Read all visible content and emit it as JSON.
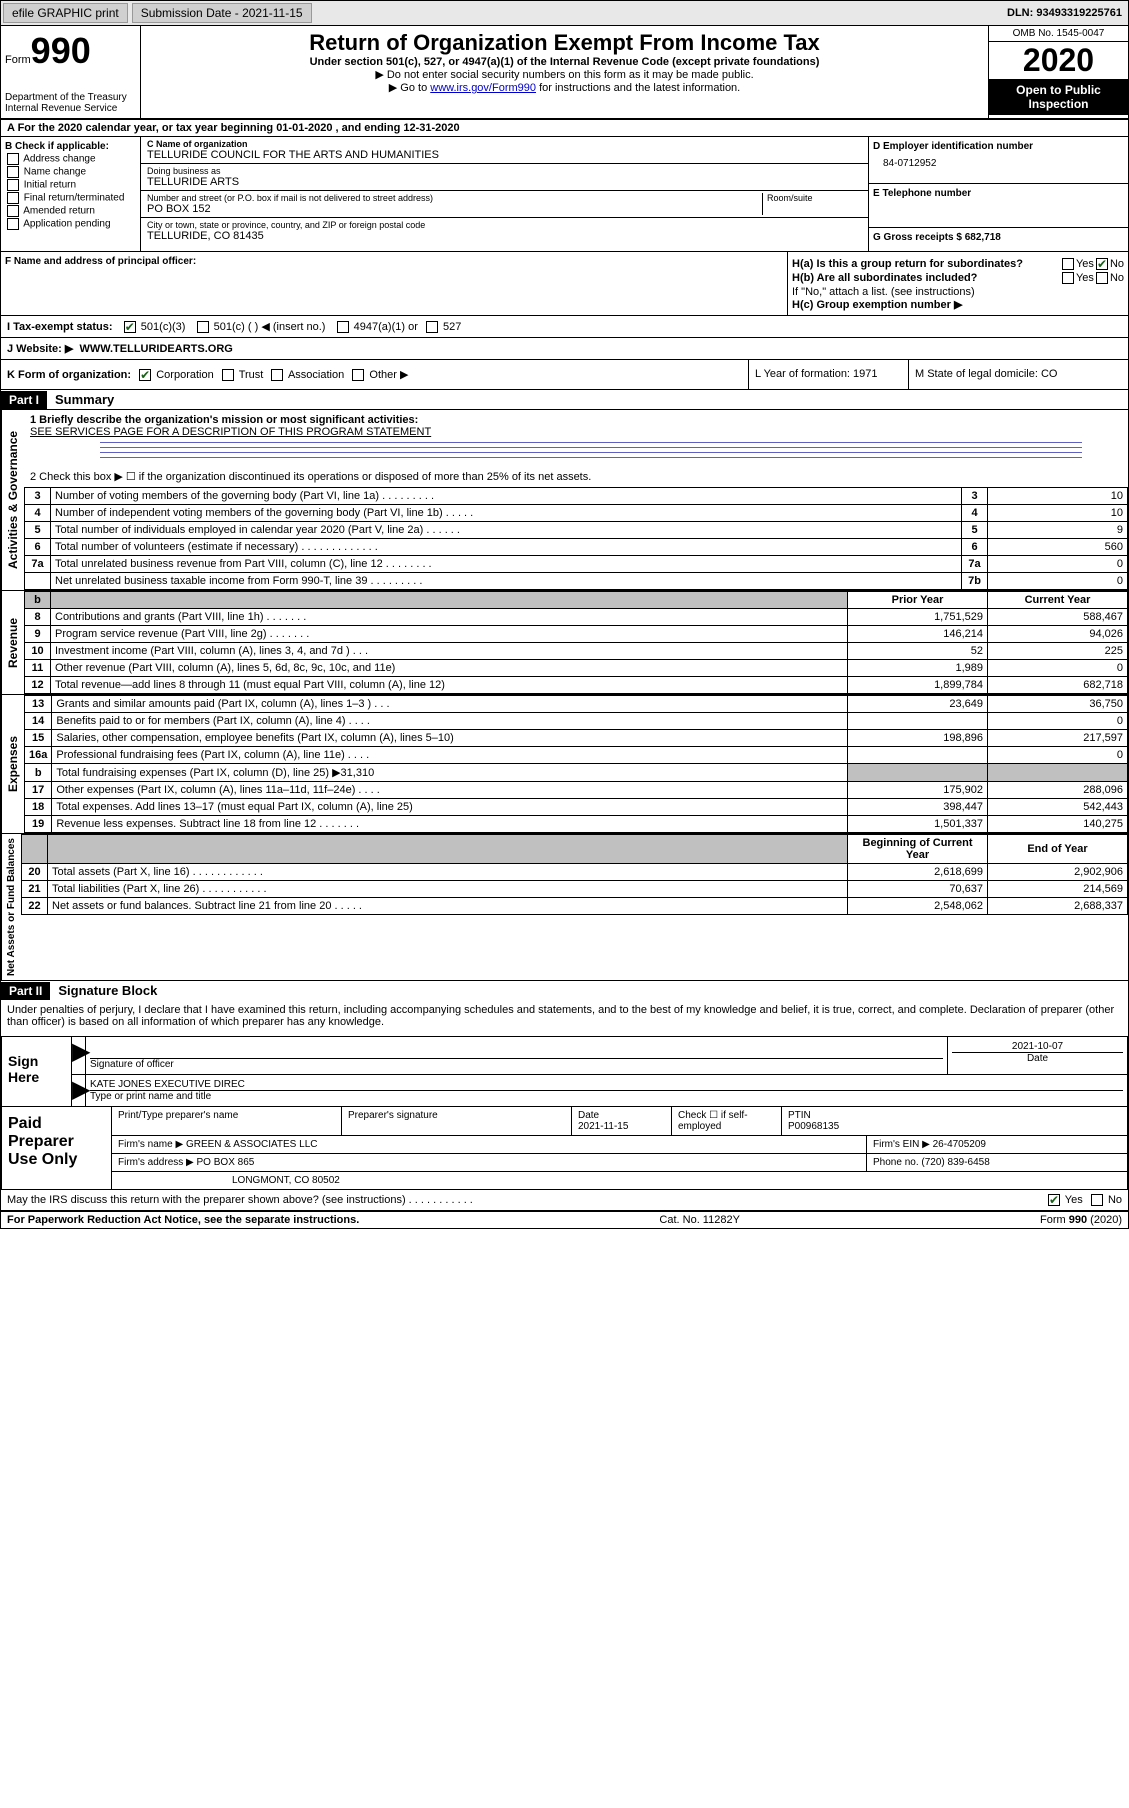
{
  "topbar": {
    "efile_label": "efile GRAPHIC print",
    "submission_label": "Submission Date - 2021-11-15",
    "dln": "DLN: 93493319225761"
  },
  "header": {
    "form_word": "Form",
    "form_num": "990",
    "dept": "Department of the Treasury",
    "irs": "Internal Revenue Service",
    "title": "Return of Organization Exempt From Income Tax",
    "subtitle": "Under section 501(c), 527, or 4947(a)(1) of the Internal Revenue Code (except private foundations)",
    "note1": "▶ Do not enter social security numbers on this form as it may be made public.",
    "note2_pre": "▶ Go to ",
    "note2_link": "www.irs.gov/Form990",
    "note2_post": " for instructions and the latest information.",
    "omb": "OMB No. 1545-0047",
    "year": "2020",
    "open": "Open to Public Inspection"
  },
  "section_a": "A For the 2020 calendar year, or tax year beginning 01-01-2020  , and ending 12-31-2020",
  "b": {
    "label": "B Check if applicable:",
    "opts": [
      "Address change",
      "Name change",
      "Initial return",
      "Final return/terminated",
      "Amended return",
      "Application pending"
    ]
  },
  "c": {
    "name_label": "C Name of organization",
    "name": "TELLURIDE COUNCIL FOR THE ARTS AND HUMANITIES",
    "dba_label": "Doing business as",
    "dba": "TELLURIDE ARTS",
    "addr_label": "Number and street (or P.O. box if mail is not delivered to street address)",
    "room_label": "Room/suite",
    "addr": "PO BOX 152",
    "city_label": "City or town, state or province, country, and ZIP or foreign postal code",
    "city": "TELLURIDE, CO  81435"
  },
  "d": {
    "ein_label": "D Employer identification number",
    "ein": "84-0712952",
    "tel_label": "E Telephone number",
    "gross_label": "G Gross receipts $ 682,718"
  },
  "f_label": "F  Name and address of principal officer:",
  "h": {
    "a_label": "H(a)  Is this a group return for subordinates?",
    "b_label": "H(b)  Are all subordinates included?",
    "b_note": "If \"No,\" attach a list. (see instructions)",
    "c_label": "H(c)  Group exemption number ▶",
    "yes": "Yes",
    "no": "No"
  },
  "i": {
    "label": "I   Tax-exempt status:",
    "o1": "501(c)(3)",
    "o2": "501(c) (  ) ◀ (insert no.)",
    "o3": "4947(a)(1) or",
    "o4": "527"
  },
  "j": {
    "label": "J    Website: ▶",
    "val": "WWW.TELLURIDEARTS.ORG"
  },
  "k": {
    "label": "K Form of organization:",
    "o1": "Corporation",
    "o2": "Trust",
    "o3": "Association",
    "o4": "Other ▶",
    "l": "L Year of formation: 1971",
    "m": "M State of legal domicile: CO"
  },
  "part1": {
    "hdr": "Part I",
    "title": "Summary"
  },
  "summary": {
    "q1_label": "1  Briefly describe the organization's mission or most significant activities:",
    "q1_val": "SEE SERVICES PAGE FOR A DESCRIPTION OF THIS PROGRAM STATEMENT",
    "q2": "2    Check this box ▶ ☐  if the organization discontinued its operations or disposed of more than 25% of its net assets.",
    "rows_gov": [
      {
        "n": "3",
        "desc": "Number of voting members of the governing body (Part VI, line 1a)  .   .   .   .   .   .   .   .   .",
        "box": "3",
        "v": "10"
      },
      {
        "n": "4",
        "desc": "Number of independent voting members of the governing body (Part VI, line 1b)   .   .   .   .   .",
        "box": "4",
        "v": "10"
      },
      {
        "n": "5",
        "desc": "Total number of individuals employed in calendar year 2020 (Part V, line 2a)   .   .   .   .   .   .",
        "box": "5",
        "v": "9"
      },
      {
        "n": "6",
        "desc": "Total number of volunteers (estimate if necessary)   .   .   .   .   .   .   .   .   .   .   .   .   .",
        "box": "6",
        "v": "560"
      },
      {
        "n": "7a",
        "desc": "Total unrelated business revenue from Part VIII, column (C), line 12   .   .   .   .   .   .   .   .",
        "box": "7a",
        "v": "0"
      },
      {
        "n": "",
        "desc": "Net unrelated business taxable income from Form 990-T, line 39   .   .   .   .   .   .   .   .   .",
        "box": "7b",
        "v": "0"
      }
    ],
    "prior_hdr": "Prior Year",
    "curr_hdr": "Current Year",
    "rows_rev": [
      {
        "n": "8",
        "desc": "Contributions and grants (Part VIII, line 1h)   .   .   .   .   .   .   .",
        "p": "1,751,529",
        "c": "588,467"
      },
      {
        "n": "9",
        "desc": "Program service revenue (Part VIII, line 2g)   .   .   .   .   .   .   .",
        "p": "146,214",
        "c": "94,026"
      },
      {
        "n": "10",
        "desc": "Investment income (Part VIII, column (A), lines 3, 4, and 7d )   .   .   .",
        "p": "52",
        "c": "225"
      },
      {
        "n": "11",
        "desc": "Other revenue (Part VIII, column (A), lines 5, 6d, 8c, 9c, 10c, and 11e)",
        "p": "1,989",
        "c": "0"
      },
      {
        "n": "12",
        "desc": "Total revenue—add lines 8 through 11 (must equal Part VIII, column (A), line 12)",
        "p": "1,899,784",
        "c": "682,718"
      }
    ],
    "rows_exp": [
      {
        "n": "13",
        "desc": "Grants and similar amounts paid (Part IX, column (A), lines 1–3 )   .   .   .",
        "p": "23,649",
        "c": "36,750"
      },
      {
        "n": "14",
        "desc": "Benefits paid to or for members (Part IX, column (A), line 4)   .   .   .   .",
        "p": "",
        "c": "0"
      },
      {
        "n": "15",
        "desc": "Salaries, other compensation, employee benefits (Part IX, column (A), lines 5–10)",
        "p": "198,896",
        "c": "217,597"
      },
      {
        "n": "16a",
        "desc": "Professional fundraising fees (Part IX, column (A), line 11e)   .   .   .   .",
        "p": "",
        "c": "0"
      },
      {
        "n": "b",
        "desc": "Total fundraising expenses (Part IX, column (D), line 25) ▶31,310",
        "p": "",
        "c": "",
        "shade": true
      },
      {
        "n": "17",
        "desc": "Other expenses (Part IX, column (A), lines 11a–11d, 11f–24e)   .   .   .   .",
        "p": "175,902",
        "c": "288,096"
      },
      {
        "n": "18",
        "desc": "Total expenses. Add lines 13–17 (must equal Part IX, column (A), line 25)",
        "p": "398,447",
        "c": "542,443"
      },
      {
        "n": "19",
        "desc": "Revenue less expenses. Subtract line 18 from line 12  .   .   .   .   .   .   .",
        "p": "1,501,337",
        "c": "140,275"
      }
    ],
    "beg_hdr": "Beginning of Current Year",
    "end_hdr": "End of Year",
    "rows_net": [
      {
        "n": "20",
        "desc": "Total assets (Part X, line 16)   .   .   .   .   .   .   .   .   .   .   .   .",
        "p": "2,618,699",
        "c": "2,902,906"
      },
      {
        "n": "21",
        "desc": "Total liabilities (Part X, line 26)   .   .   .   .   .   .   .   .   .   .   .",
        "p": "70,637",
        "c": "214,569"
      },
      {
        "n": "22",
        "desc": "Net assets or fund balances. Subtract line 21 from line 20  .   .   .   .   .",
        "p": "2,548,062",
        "c": "2,688,337"
      }
    ]
  },
  "vert": {
    "gov": "Activities & Governance",
    "rev": "Revenue",
    "exp": "Expenses",
    "net": "Net Assets or Fund Balances"
  },
  "part2": {
    "hdr": "Part II",
    "title": "Signature Block"
  },
  "perjury": "Under penalties of perjury, I declare that I have examined this return, including accompanying schedules and statements, and to the best of my knowledge and belief, it is true, correct, and complete. Declaration of preparer (other than officer) is based on all information of which preparer has any knowledge.",
  "sign": {
    "label": "Sign Here",
    "sig_label": "Signature of officer",
    "date": "2021-10-07",
    "date_label": "Date",
    "name": "KATE JONES EXECUTIVE DIREC",
    "name_label": "Type or print name and title"
  },
  "prep": {
    "label": "Paid Preparer Use Only",
    "h1": "Print/Type preparer's name",
    "h2": "Preparer's signature",
    "h3_label": "Date",
    "h3": "2021-11-15",
    "h4_label": "Check ☐ if self-employed",
    "h5_label": "PTIN",
    "h5": "P00968135",
    "firm_label": "Firm's name    ▶",
    "firm": "GREEN & ASSOCIATES LLC",
    "ein_label": "Firm's EIN ▶",
    "ein": "26-4705209",
    "addr_label": "Firm's address ▶",
    "addr1": "PO BOX 865",
    "addr2": "LONGMONT, CO  80502",
    "phone_label": "Phone no.",
    "phone": "(720) 839-6458"
  },
  "discuss": {
    "q": "May the IRS discuss this return with the preparer shown above? (see instructions)   .   .   .   .   .   .   .   .   .   .   .",
    "yes": "Yes",
    "no": "No"
  },
  "footer": {
    "left": "For Paperwork Reduction Act Notice, see the separate instructions.",
    "mid": "Cat. No. 11282Y",
    "right": "Form 990 (2020)"
  }
}
